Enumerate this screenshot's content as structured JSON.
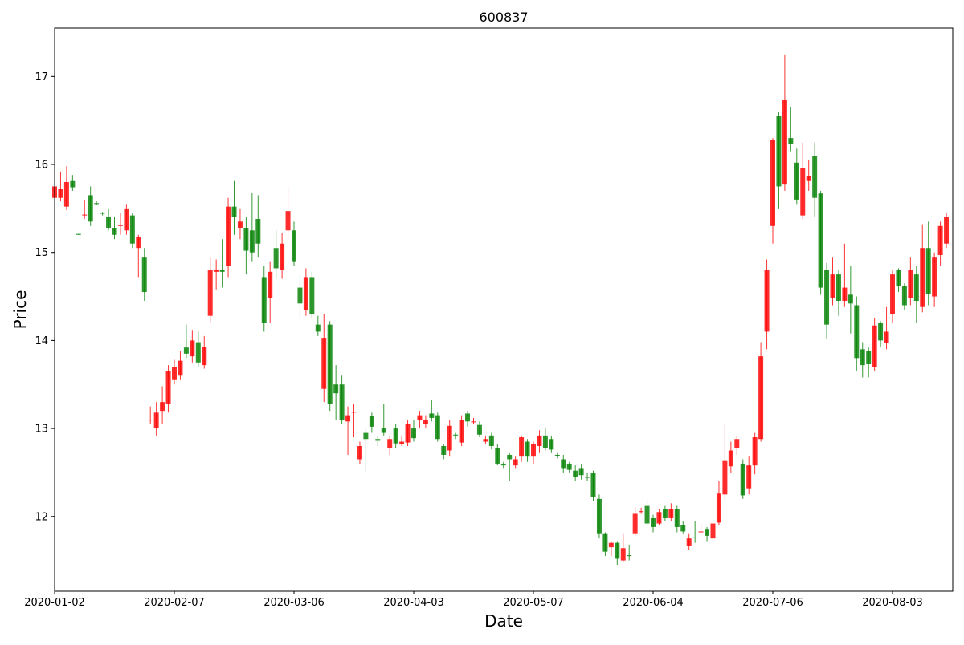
{
  "chart_data": {
    "type": "candlestick",
    "title": "600837",
    "xlabel": "Date",
    "ylabel": "Price",
    "ylim": [
      11.15,
      17.55
    ],
    "y_ticks": [
      12,
      13,
      14,
      15,
      16,
      17
    ],
    "x_tick_labels": [
      "2020-01-02",
      "2020-02-07",
      "2020-03-06",
      "2020-04-03",
      "2020-05-07",
      "2020-06-04",
      "2020-07-06",
      "2020-08-03"
    ],
    "x_tick_indices": [
      0,
      20,
      40,
      60,
      80,
      100,
      120,
      140
    ],
    "colors": {
      "up": "#ff0000",
      "down": "#008000"
    },
    "candles": [
      [
        15.62,
        15.75,
        15.85,
        15.55
      ],
      [
        15.62,
        15.72,
        15.92,
        15.58
      ],
      [
        15.52,
        15.8,
        15.98,
        15.48
      ],
      [
        15.82,
        15.74,
        15.88,
        15.7
      ],
      [
        15.21,
        15.2,
        15.21,
        15.2
      ],
      [
        15.42,
        15.43,
        15.6,
        15.38
      ],
      [
        15.65,
        15.35,
        15.75,
        15.3
      ],
      [
        15.56,
        15.55,
        15.58,
        15.54
      ],
      [
        15.45,
        15.44,
        15.46,
        15.42
      ],
      [
        15.4,
        15.28,
        15.5,
        15.25
      ],
      [
        15.28,
        15.2,
        15.4,
        15.15
      ],
      [
        15.3,
        15.31,
        15.45,
        15.2
      ],
      [
        15.25,
        15.5,
        15.55,
        15.2
      ],
      [
        15.42,
        15.1,
        15.45,
        15.05
      ],
      [
        15.05,
        15.18,
        15.2,
        14.72
      ],
      [
        14.95,
        14.55,
        15.05,
        14.45
      ],
      [
        13.1,
        13.1,
        13.25,
        13.05
      ],
      [
        13.0,
        13.18,
        13.3,
        12.92
      ],
      [
        13.2,
        13.3,
        13.48,
        13.05
      ],
      [
        13.28,
        13.65,
        13.72,
        13.18
      ],
      [
        13.55,
        13.7,
        13.78,
        13.5
      ],
      [
        13.6,
        13.77,
        13.88,
        13.55
      ],
      [
        13.92,
        13.85,
        14.18,
        13.8
      ],
      [
        13.82,
        14.0,
        14.12,
        13.75
      ],
      [
        13.98,
        13.75,
        14.1,
        13.7
      ],
      [
        13.72,
        13.93,
        14.05,
        13.68
      ],
      [
        14.28,
        14.8,
        14.95,
        14.2
      ],
      [
        14.78,
        14.8,
        14.92,
        14.58
      ],
      [
        14.8,
        14.78,
        15.15,
        14.6
      ],
      [
        14.85,
        15.52,
        15.62,
        14.72
      ],
      [
        15.52,
        15.4,
        15.82,
        15.2
      ],
      [
        15.28,
        15.35,
        15.5,
        15.15
      ],
      [
        15.28,
        15.02,
        15.4,
        14.75
      ],
      [
        15.25,
        15.0,
        15.68,
        14.9
      ],
      [
        15.38,
        15.1,
        15.65,
        14.95
      ],
      [
        14.72,
        14.2,
        14.85,
        14.1
      ],
      [
        14.48,
        14.78,
        14.9,
        14.2
      ],
      [
        15.05,
        14.82,
        15.25,
        14.7
      ],
      [
        14.8,
        15.1,
        15.22,
        14.7
      ],
      [
        15.25,
        15.47,
        15.75,
        15.15
      ],
      [
        15.25,
        14.9,
        15.35,
        14.85
      ],
      [
        14.6,
        14.42,
        14.75,
        14.25
      ],
      [
        14.35,
        14.72,
        14.82,
        14.28
      ],
      [
        14.72,
        14.3,
        14.78,
        14.25
      ],
      [
        14.18,
        14.1,
        14.28,
        14.05
      ],
      [
        13.45,
        14.03,
        14.3,
        13.3
      ],
      [
        14.18,
        13.28,
        14.22,
        13.2
      ],
      [
        13.5,
        13.4,
        13.72,
        13.1
      ],
      [
        13.5,
        13.1,
        13.6,
        13.05
      ],
      [
        13.08,
        13.15,
        13.25,
        12.7
      ],
      [
        13.18,
        13.19,
        13.28,
        12.9
      ],
      [
        12.65,
        12.8,
        12.85,
        12.6
      ],
      [
        12.95,
        12.88,
        13.0,
        12.5
      ],
      [
        13.14,
        13.02,
        13.18,
        12.95
      ],
      [
        12.88,
        12.86,
        12.92,
        12.8
      ],
      [
        13.0,
        12.95,
        13.28,
        12.92
      ],
      [
        12.78,
        12.88,
        12.92,
        12.7
      ],
      [
        13.0,
        12.83,
        13.05,
        12.78
      ],
      [
        12.82,
        12.85,
        12.92,
        12.8
      ],
      [
        12.84,
        13.05,
        13.1,
        12.8
      ],
      [
        13.0,
        12.89,
        13.1,
        12.85
      ],
      [
        13.1,
        13.15,
        13.2,
        13.0
      ],
      [
        13.05,
        13.1,
        13.15,
        13.0
      ],
      [
        13.17,
        13.12,
        13.32,
        13.08
      ],
      [
        13.15,
        12.88,
        13.18,
        12.85
      ],
      [
        12.8,
        12.7,
        12.82,
        12.65
      ],
      [
        12.75,
        13.03,
        13.1,
        12.68
      ],
      [
        12.93,
        12.92,
        12.95,
        12.88
      ],
      [
        12.84,
        13.1,
        13.15,
        12.8
      ],
      [
        13.17,
        13.08,
        13.2,
        13.02
      ],
      [
        13.07,
        13.08,
        13.12,
        13.05
      ],
      [
        13.04,
        12.93,
        13.08,
        12.9
      ],
      [
        12.85,
        12.88,
        12.92,
        12.82
      ],
      [
        12.92,
        12.8,
        12.95,
        12.76
      ],
      [
        12.78,
        12.6,
        12.82,
        12.58
      ],
      [
        12.6,
        12.58,
        12.62,
        12.55
      ],
      [
        12.7,
        12.65,
        12.72,
        12.4
      ],
      [
        12.58,
        12.65,
        12.68,
        12.55
      ],
      [
        12.68,
        12.9,
        12.92,
        12.62
      ],
      [
        12.85,
        12.68,
        12.88,
        12.62
      ],
      [
        12.68,
        12.82,
        12.85,
        12.6
      ],
      [
        12.8,
        12.92,
        12.98,
        12.72
      ],
      [
        12.92,
        12.78,
        13.0,
        12.75
      ],
      [
        12.88,
        12.76,
        12.92,
        12.72
      ],
      [
        12.7,
        12.69,
        12.72,
        12.66
      ],
      [
        12.65,
        12.55,
        12.7,
        12.5
      ],
      [
        12.6,
        12.53,
        12.62,
        12.5
      ],
      [
        12.52,
        12.45,
        12.58,
        12.4
      ],
      [
        12.55,
        12.47,
        12.6,
        12.42
      ],
      [
        12.45,
        12.44,
        12.5,
        12.4
      ],
      [
        12.49,
        12.22,
        12.52,
        12.18
      ],
      [
        12.2,
        11.8,
        12.25,
        11.75
      ],
      [
        11.8,
        11.6,
        11.82,
        11.55
      ],
      [
        11.65,
        11.7,
        11.72,
        11.55
      ],
      [
        11.7,
        11.52,
        11.72,
        11.45
      ],
      [
        11.5,
        11.64,
        11.8,
        11.48
      ],
      [
        11.56,
        11.55,
        11.68,
        11.5
      ],
      [
        11.8,
        12.03,
        12.1,
        11.78
      ],
      [
        12.05,
        12.06,
        12.1,
        12.03
      ],
      [
        12.12,
        11.92,
        12.2,
        11.88
      ],
      [
        11.98,
        11.88,
        12.02,
        11.82
      ],
      [
        11.92,
        12.05,
        12.08,
        11.9
      ],
      [
        12.08,
        11.98,
        12.12,
        11.95
      ],
      [
        11.98,
        12.08,
        12.15,
        11.95
      ],
      [
        12.08,
        11.88,
        12.12,
        11.82
      ],
      [
        11.9,
        11.83,
        11.95,
        11.8
      ],
      [
        11.67,
        11.75,
        11.8,
        11.62
      ],
      [
        11.77,
        11.76,
        11.95,
        11.7
      ],
      [
        11.82,
        11.83,
        11.9,
        11.8
      ],
      [
        11.85,
        11.78,
        11.88,
        11.72
      ],
      [
        11.75,
        11.92,
        11.98,
        11.72
      ],
      [
        11.93,
        12.26,
        12.4,
        11.9
      ],
      [
        12.25,
        12.63,
        13.05,
        12.2
      ],
      [
        12.57,
        12.75,
        12.85,
        12.5
      ],
      [
        12.78,
        12.88,
        12.92,
        12.7
      ],
      [
        12.6,
        12.24,
        12.65,
        12.2
      ],
      [
        12.32,
        12.58,
        12.68,
        12.25
      ],
      [
        12.58,
        12.9,
        12.95,
        12.48
      ],
      [
        12.88,
        13.82,
        13.98,
        12.85
      ],
      [
        14.1,
        14.8,
        14.92,
        13.9
      ],
      [
        15.3,
        16.28,
        16.3,
        15.1
      ],
      [
        16.55,
        15.75,
        16.6,
        15.5
      ],
      [
        15.78,
        16.73,
        17.25,
        15.7
      ],
      [
        16.3,
        16.23,
        16.65,
        16.15
      ],
      [
        16.02,
        15.6,
        16.18,
        15.55
      ],
      [
        15.42,
        15.96,
        16.25,
        15.38
      ],
      [
        15.82,
        15.87,
        16.05,
        15.7
      ],
      [
        16.1,
        15.62,
        16.25,
        15.4
      ],
      [
        15.67,
        14.6,
        15.7,
        14.52
      ],
      [
        14.8,
        14.18,
        14.88,
        14.02
      ],
      [
        14.48,
        14.75,
        14.95,
        14.4
      ],
      [
        14.75,
        14.45,
        14.8,
        14.28
      ],
      [
        14.45,
        14.6,
        15.1,
        14.38
      ],
      [
        14.52,
        14.42,
        14.85,
        14.08
      ],
      [
        14.4,
        13.8,
        14.5,
        13.65
      ],
      [
        13.9,
        13.72,
        13.98,
        13.58
      ],
      [
        13.88,
        13.73,
        13.92,
        13.58
      ],
      [
        13.7,
        14.17,
        14.25,
        13.65
      ],
      [
        14.2,
        14.0,
        14.22,
        13.92
      ],
      [
        13.97,
        14.1,
        14.38,
        13.9
      ],
      [
        14.3,
        14.75,
        14.8,
        14.2
      ],
      [
        14.8,
        14.62,
        14.82,
        14.55
      ],
      [
        14.62,
        14.4,
        14.65,
        14.35
      ],
      [
        14.48,
        14.8,
        14.95,
        14.4
      ],
      [
        14.75,
        14.45,
        14.85,
        14.2
      ],
      [
        14.38,
        15.05,
        15.32,
        14.32
      ],
      [
        15.05,
        14.53,
        15.35,
        14.4
      ],
      [
        14.5,
        14.95,
        15.0,
        14.38
      ],
      [
        14.97,
        15.3,
        15.35,
        14.85
      ],
      [
        15.1,
        15.4,
        15.45,
        15.05
      ]
    ]
  }
}
